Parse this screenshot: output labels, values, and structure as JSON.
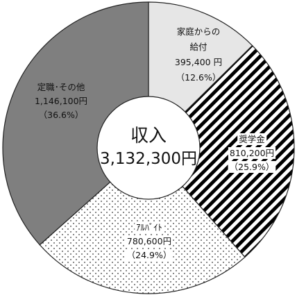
{
  "chart_data": {
    "type": "pie",
    "style": "donut",
    "center": {
      "title": "収入",
      "total": "3,132,300円"
    },
    "categories": [
      "家庭からの給付",
      "奨学金",
      "アルバイト",
      "定職・その他"
    ],
    "values": [
      395400,
      810200,
      780600,
      1146100
    ],
    "percents": [
      12.6,
      25.9,
      24.9,
      36.6
    ],
    "slices": [
      {
        "name": "家庭からの給付",
        "name_lines": [
          "家庭からの",
          "給付"
        ],
        "value": 395400,
        "value_text": "395,400 円",
        "percent_text": "（12.6%）",
        "fill": "#e6e6e6",
        "pattern": "solid"
      },
      {
        "name": "奨学金",
        "name_lines": [
          "奨学金"
        ],
        "value": 810200,
        "value_text": "810,200円",
        "percent_text": "（25.9%）",
        "fill": "#000000",
        "pattern": "diagonal-stripes"
      },
      {
        "name": "アルバイト",
        "name_lines": [
          "ｱﾙﾊﾞｲﾄ"
        ],
        "value": 780600,
        "value_text": "780,600円",
        "percent_text": "（24.9%）",
        "fill": "#ffffff",
        "pattern": "dots"
      },
      {
        "name": "定職・その他",
        "name_lines": [
          "定職･その他"
        ],
        "value": 1146100,
        "value_text": "1,146,100円",
        "percent_text": "（36.6%）",
        "fill": "#7f7f7f",
        "pattern": "solid"
      }
    ],
    "start_angle_deg": 0,
    "direction": "clockwise",
    "legend": "none"
  }
}
